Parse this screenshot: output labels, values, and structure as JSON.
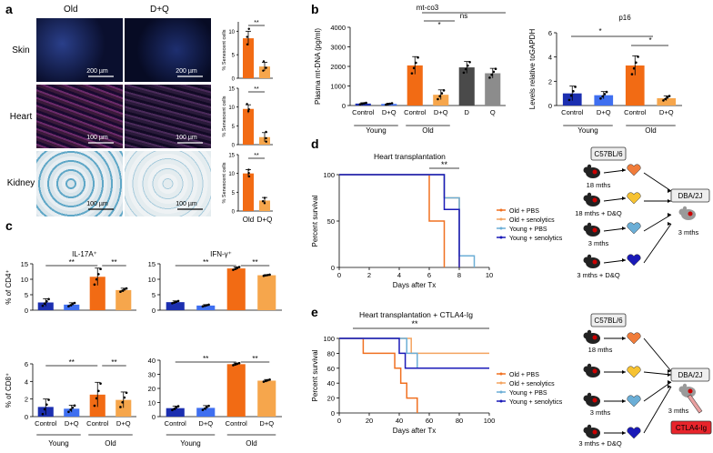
{
  "panels": {
    "a": {
      "letter": "a",
      "col_old": "Old",
      "col_dq": "D+Q",
      "rows": [
        {
          "tissue": "Skin",
          "scale": "200 µm",
          "bars": [
            8.5,
            2.5
          ],
          "err": [
            1.5,
            0.9
          ],
          "pts": [
            [
              10.5,
              7.2,
              8.8
            ],
            [
              3.6,
              1.6,
              2.2
            ]
          ],
          "ymax": 12,
          "ticks": [
            0,
            5,
            10
          ]
        },
        {
          "tissue": "Heart",
          "scale": "100 µm",
          "bars": [
            9.5,
            2.0
          ],
          "err": [
            1.1,
            1.2
          ],
          "pts": [
            [
              10.8,
              8.9,
              9.4
            ],
            [
              3.4,
              0.8,
              1.7
            ]
          ],
          "ymax": 15,
          "ticks": [
            0,
            5,
            10,
            15
          ]
        },
        {
          "tissue": "Kidney",
          "scale": "100 µm",
          "bars": [
            10,
            2.8
          ],
          "err": [
            1,
            0.8
          ],
          "pts": [
            [
              11,
              9.2,
              10.1
            ],
            [
              3.5,
              2.1,
              2.6
            ]
          ],
          "ymax": 15,
          "ticks": [
            0,
            5,
            10,
            15
          ]
        }
      ],
      "ylabel": "% Senescent cells",
      "sig": "**",
      "xcats": [
        "Old",
        "D+Q"
      ]
    },
    "b": {
      "letter": "b",
      "left": {
        "title": "mt-co3",
        "ylabel": "Plasma mt-DNA (pg/ml)",
        "ylim": [
          0,
          4000
        ],
        "ticks": [
          0,
          1000,
          2000,
          3000,
          4000
        ],
        "tick_labels": [
          "0",
          "1000",
          "2000",
          "3000",
          "4000"
        ],
        "categories": [
          "Control",
          "D+Q",
          "Control",
          "D+Q",
          "D",
          "Q"
        ],
        "values": [
          100,
          80,
          2050,
          550,
          1950,
          1650
        ],
        "errors": [
          40,
          40,
          450,
          250,
          300,
          250
        ],
        "groups": [
          "Young",
          "Old"
        ],
        "sig1": "*",
        "sig2": "ns"
      },
      "right": {
        "title": "p16",
        "ylabel": "Levels relative toGAPDH",
        "ylim": [
          0,
          6
        ],
        "ticks": [
          0,
          2,
          4,
          6
        ],
        "tick_labels": [
          "0",
          "2",
          "4",
          "6"
        ],
        "categories": [
          "Control",
          "D+Q",
          "Control",
          "D+Q"
        ],
        "values": [
          1.0,
          0.85,
          3.3,
          0.6
        ],
        "errors": [
          0.6,
          0.3,
          0.8,
          0.2
        ],
        "groups": [
          "Young",
          "Old"
        ],
        "sig1": "*",
        "sig2": "*"
      }
    },
    "c": {
      "letter": "c",
      "charts": [
        {
          "title": "IL-17A⁺",
          "ylabel": "% of CD4⁺",
          "ylim": [
            0,
            15
          ],
          "ticks": [
            0,
            5,
            10,
            15
          ],
          "values": [
            2.5,
            1.8,
            10.8,
            6.5
          ],
          "errors": [
            1.2,
            0.6,
            2.8,
            0.6
          ]
        },
        {
          "title": "IFN-γ⁺",
          "ylabel": "",
          "ylim": [
            0,
            15
          ],
          "ticks": [
            0,
            5,
            10,
            15
          ],
          "values": [
            2.6,
            1.5,
            13.5,
            11.3
          ],
          "errors": [
            0.4,
            0.3,
            0.5,
            0.2
          ]
        },
        {
          "title": "",
          "ylabel": "% of CD8⁺",
          "ylim": [
            0,
            6
          ],
          "ticks": [
            0,
            2,
            4,
            6
          ],
          "values": [
            1.1,
            0.9,
            2.5,
            1.9
          ],
          "errors": [
            0.9,
            0.4,
            1.4,
            0.9
          ]
        },
        {
          "title": "",
          "ylabel": "",
          "ylim": [
            0,
            40
          ],
          "ticks": [
            0,
            10,
            20,
            30,
            40
          ],
          "values": [
            6.0,
            6.2,
            37.2,
            25.5
          ],
          "errors": [
            1.5,
            1.6,
            0.8,
            0.8
          ]
        }
      ],
      "categories": [
        "Control",
        "D+Q",
        "Control",
        "D+Q"
      ],
      "groups": [
        "Young",
        "Old"
      ],
      "sig": "**"
    },
    "d": {
      "letter": "d",
      "title": "Heart transplantation",
      "sig": "**",
      "xlabel": "Days after Tx",
      "ylabel": "Percent survival",
      "xticks": [
        0,
        2,
        4,
        6,
        8,
        10
      ],
      "yticks": [
        0,
        50,
        100
      ],
      "series": [
        {
          "name": "Old + PBS",
          "color": "#f07020",
          "steps": [
            [
              0,
              100
            ],
            [
              6,
              100
            ],
            [
              6,
              50
            ],
            [
              7,
              50
            ],
            [
              7,
              0
            ]
          ]
        },
        {
          "name": "Old + senolytics",
          "color": "#f4a460",
          "steps": [
            [
              0,
              100
            ],
            [
              7,
              100
            ],
            [
              7,
              75
            ],
            [
              8,
              75
            ],
            [
              8,
              0
            ]
          ]
        },
        {
          "name": "Young + PBS",
          "color": "#6baed6",
          "steps": [
            [
              0,
              100
            ],
            [
              7,
              100
            ],
            [
              7,
              75
            ],
            [
              8,
              75
            ],
            [
              8,
              12.5
            ],
            [
              9,
              12.5
            ],
            [
              9,
              0
            ]
          ]
        },
        {
          "name": "Young + senolytics",
          "color": "#1a1ab8",
          "steps": [
            [
              0,
              100
            ],
            [
              7,
              100
            ],
            [
              7,
              62.5
            ],
            [
              8,
              62.5
            ],
            [
              8,
              0
            ]
          ]
        }
      ]
    },
    "e": {
      "letter": "e",
      "title": "Heart transplantation + CTLA4-Ig",
      "sig": "**",
      "xlabel": "Days after Tx",
      "ylabel": "Percent survival",
      "xticks": [
        0,
        20,
        40,
        60,
        80,
        100
      ],
      "yticks": [
        0,
        20,
        40,
        60,
        80,
        100
      ],
      "series": [
        {
          "name": "Old + PBS",
          "color": "#f07020",
          "steps": [
            [
              0,
              100
            ],
            [
              16,
              100
            ],
            [
              16,
              80
            ],
            [
              37,
              80
            ],
            [
              37,
              60
            ],
            [
              41,
              60
            ],
            [
              41,
              40
            ],
            [
              45,
              40
            ],
            [
              45,
              20
            ],
            [
              52,
              20
            ],
            [
              52,
              0
            ]
          ]
        },
        {
          "name": "Old + senolytics",
          "color": "#f4a460",
          "steps": [
            [
              0,
              100
            ],
            [
              48,
              100
            ],
            [
              48,
              80
            ],
            [
              100,
              80
            ]
          ]
        },
        {
          "name": "Young + PBS",
          "color": "#6baed6",
          "steps": [
            [
              0,
              100
            ],
            [
              45,
              100
            ],
            [
              45,
              80
            ],
            [
              52,
              80
            ],
            [
              52,
              60
            ],
            [
              100,
              60
            ]
          ]
        },
        {
          "name": "Young + senolytics",
          "color": "#1a1ab8",
          "steps": [
            [
              0,
              100
            ],
            [
              40,
              100
            ],
            [
              40,
              80
            ],
            [
              44,
              80
            ],
            [
              44,
              60
            ],
            [
              100,
              60
            ]
          ]
        }
      ]
    },
    "schema_d": {
      "strain": "C57BL/6",
      "labels": [
        "18 mths",
        "18 mths + D&Q",
        "3 mths",
        "3 mths + D&Q"
      ],
      "recipient": "DBA/2J",
      "recipient_age": "3 mths"
    },
    "schema_e": {
      "strain": "C57BL/6",
      "labels": [
        "18 mths",
        "3 mths",
        "3 mths + D&Q"
      ],
      "recipient": "DBA/2J",
      "recipient_age": "3 mths",
      "drug": "CTLA4-Ig"
    }
  },
  "colors": {
    "young_control": "#1c2fb0",
    "young_dq": "#3f6ff0",
    "old_control": "#f26b14",
    "old_dq": "#f6a64c",
    "dark_grey": "#4a4a4a",
    "grey": "#8c8c8c",
    "ctla": "#e8242b"
  }
}
